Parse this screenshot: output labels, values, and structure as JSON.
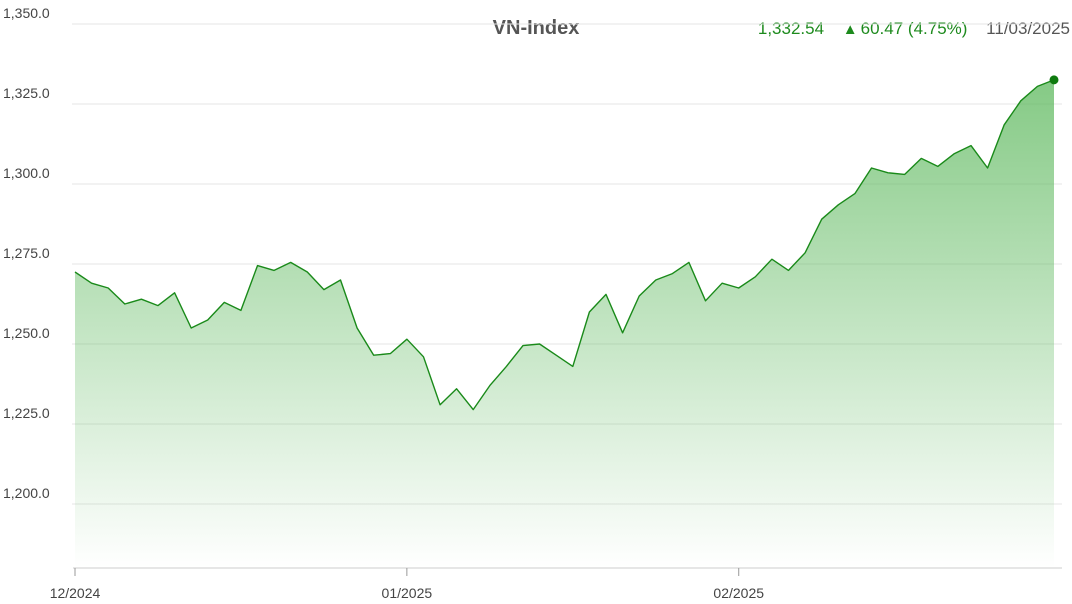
{
  "header": {
    "title": "VN-Index",
    "value": "1,332.54",
    "change": "60.47 (4.75%)",
    "date": "11/03/2025"
  },
  "colors": {
    "line": "#1a8a1a",
    "fill": "#5cb85c",
    "grid": "#e6e6e6",
    "marker": "#0f7a0f"
  },
  "chart_data": {
    "type": "area",
    "title": "VN-Index",
    "xlabel": "",
    "ylabel": "",
    "ylim": [
      1180,
      1355
    ],
    "yticks": [
      1200,
      1225,
      1250,
      1275,
      1300,
      1325,
      1350
    ],
    "ytick_labels": [
      "1,200.0",
      "1,225.0",
      "1,250.0",
      "1,275.0",
      "1,300.0",
      "1,325.0",
      "1,350.0"
    ],
    "xticks": [
      {
        "label": "12/2024",
        "index": 0
      },
      {
        "label": "01/2025",
        "index": 20
      },
      {
        "label": "02/2025",
        "index": 40
      }
    ],
    "grid": true,
    "legend": "none",
    "series": [
      {
        "values": [
          1272.5,
          1269,
          1267.5,
          1262.5,
          1264,
          1262,
          1266,
          1255,
          1257.5,
          1263,
          1260.5,
          1274.5,
          1273,
          1275.5,
          1272.5,
          1267,
          1270,
          1255,
          1246.5,
          1247,
          1251.5,
          1246,
          1231,
          1236,
          1229.5,
          1237,
          1243,
          1249.5,
          1250,
          1246.5,
          1243,
          1260,
          1265.5,
          1253.5,
          1265,
          1270,
          1272,
          1275.5,
          1263.5,
          1269,
          1267.5,
          1271,
          1276.5,
          1273,
          1278.5,
          1289,
          1293.5,
          1297,
          1305,
          1303.5,
          1303,
          1308,
          1305.5,
          1309.5,
          1312,
          1305,
          1318.5,
          1326,
          1330.5,
          1332.54
        ]
      }
    ]
  }
}
